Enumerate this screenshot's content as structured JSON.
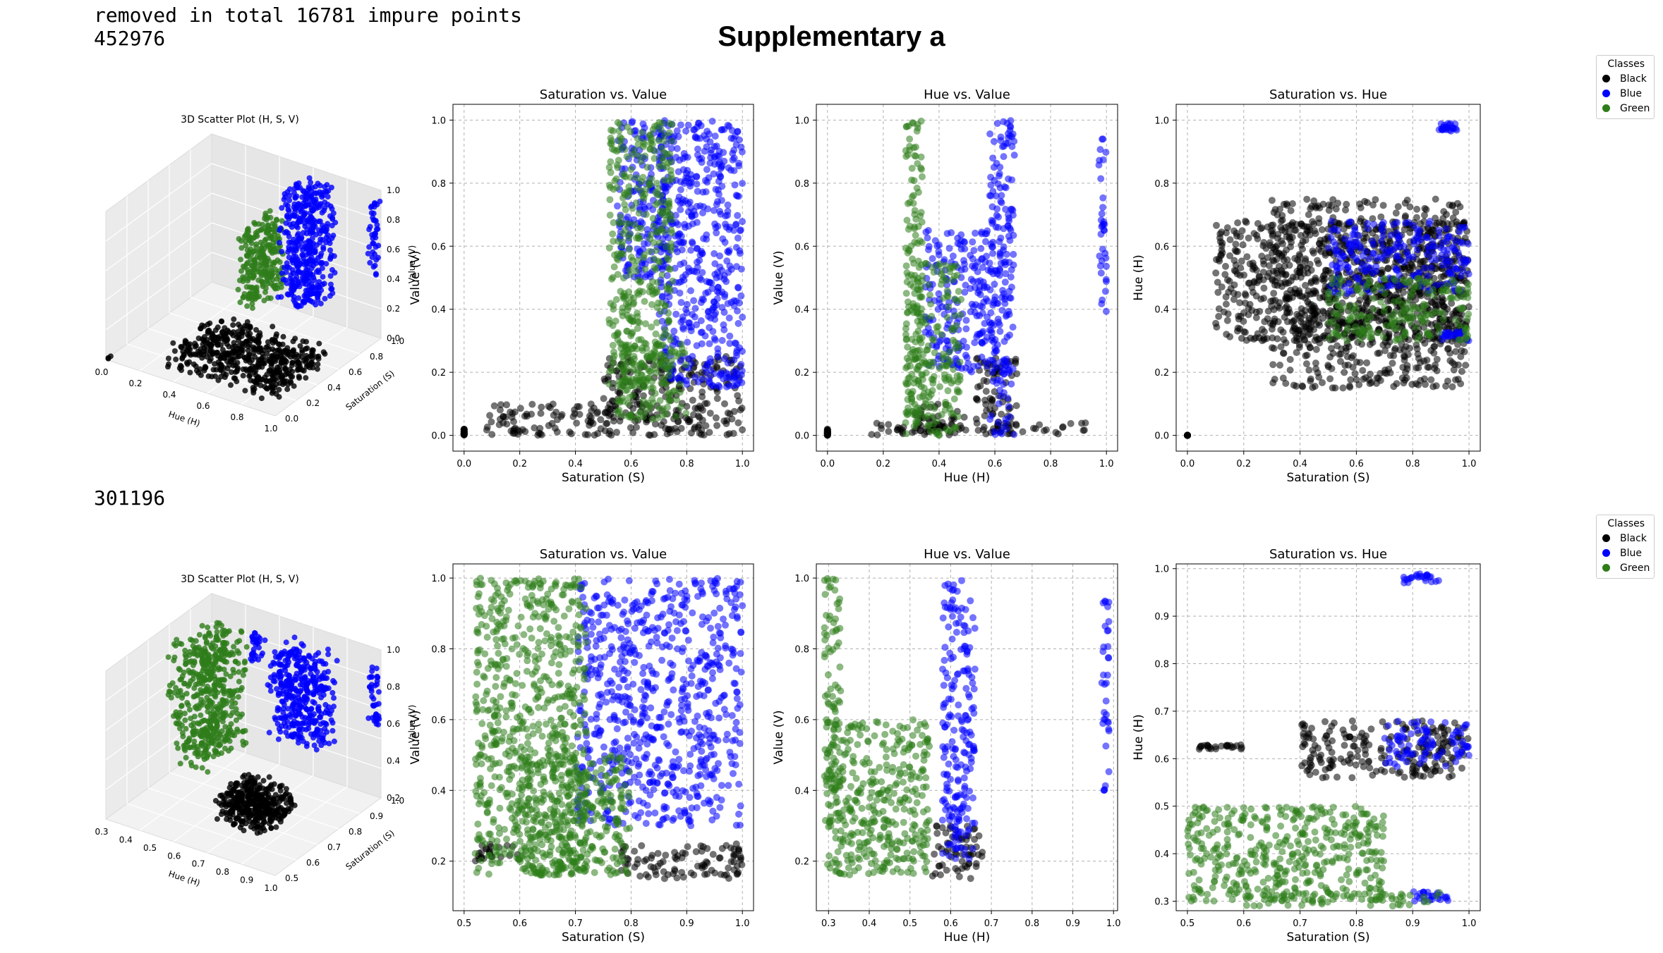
{
  "header": {
    "log_line1": "removed in total 16781 impure points",
    "log_line2": "452976",
    "log_line3": "301196",
    "suptitle": "Supplementary a"
  },
  "legend": {
    "title": "Classes",
    "items": [
      {
        "label": "Black",
        "color": "#000000"
      },
      {
        "label": "Blue",
        "color": "#0000ff"
      },
      {
        "label": "Green",
        "color": "#2e7d1a"
      }
    ]
  },
  "colors": {
    "black": "#000000",
    "blue": "#0000ff",
    "green": "#2e7d1a",
    "grid": "#b0b0b0"
  },
  "chart_data": [
    {
      "type": "scatter3d",
      "row": 1,
      "title": "3D Scatter Plot (H, S, V)",
      "xlabel": "Hue (H)",
      "ylabel": "Saturation (S)",
      "zlabel": "Value (V)",
      "xticks": [
        "0.0",
        "0.2",
        "0.4",
        "0.6",
        "0.8",
        "1.0"
      ],
      "yticks": [
        "0.0",
        "0.2",
        "0.4",
        "0.6",
        "0.8",
        "1.0"
      ],
      "zticks": [
        "0.0",
        "0.2",
        "0.4",
        "0.6",
        "0.8",
        "1.0"
      ]
    },
    {
      "type": "scatter",
      "row": 1,
      "title": "Saturation vs. Value",
      "xlabel": "Saturation (S)",
      "ylabel": "Value (V)",
      "xlim": [
        -0.04,
        1.04
      ],
      "ylim": [
        -0.05,
        1.05
      ],
      "xticks": [
        0.0,
        0.2,
        0.4,
        0.6,
        0.8,
        1.0
      ],
      "yticks": [
        0.0,
        0.2,
        0.4,
        0.6,
        0.8,
        1.0
      ],
      "grid": true,
      "series": [
        {
          "name": "Black",
          "color": "#000000",
          "clusters": [
            {
              "x": [
                0.0,
                0.0
              ],
              "y": [
                0.0,
                0.02
              ]
            },
            {
              "x": [
                0.08,
                0.55
              ],
              "y": [
                0.0,
                0.1
              ]
            },
            {
              "x": [
                0.5,
                1.0
              ],
              "y": [
                0.0,
                0.25
              ]
            }
          ]
        },
        {
          "name": "Blue",
          "color": "#0000ff",
          "clusters": [
            {
              "x": [
                0.7,
                1.0
              ],
              "y": [
                0.15,
                1.0
              ]
            },
            {
              "x": [
                0.55,
                0.72
              ],
              "y": [
                0.5,
                1.0
              ]
            }
          ]
        },
        {
          "name": "Green",
          "color": "#2e7d1a",
          "clusters": [
            {
              "x": [
                0.52,
                0.75
              ],
              "y": [
                0.15,
                1.0
              ]
            },
            {
              "x": [
                0.55,
                0.8
              ],
              "y": [
                0.05,
                0.3
              ]
            }
          ]
        }
      ]
    },
    {
      "type": "scatter",
      "row": 1,
      "title": "Hue vs. Value",
      "xlabel": "Hue (H)",
      "ylabel": "Value (V)",
      "xlim": [
        -0.04,
        1.04
      ],
      "ylim": [
        -0.05,
        1.05
      ],
      "xticks": [
        0.0,
        0.2,
        0.4,
        0.6,
        0.8,
        1.0
      ],
      "yticks": [
        0.0,
        0.2,
        0.4,
        0.6,
        0.8,
        1.0
      ],
      "grid": true,
      "series": [
        {
          "name": "Black",
          "color": "#000000",
          "clusters": [
            {
              "x": [
                0.0,
                0.0
              ],
              "y": [
                0.0,
                0.02
              ]
            },
            {
              "x": [
                0.15,
                0.95
              ],
              "y": [
                0.0,
                0.04
              ]
            },
            {
              "x": [
                0.53,
                0.68
              ],
              "y": [
                0.0,
                0.25
              ]
            },
            {
              "x": [
                0.3,
                0.5
              ],
              "y": [
                0.0,
                0.1
              ]
            }
          ]
        },
        {
          "name": "Blue",
          "color": "#0000ff",
          "clusters": [
            {
              "x": [
                0.58,
                0.67
              ],
              "y": [
                0.0,
                1.0
              ]
            },
            {
              "x": [
                0.35,
                0.6
              ],
              "y": [
                0.2,
                0.65
              ]
            },
            {
              "x": [
                0.97,
                1.0
              ],
              "y": [
                0.38,
                0.95
              ]
            }
          ]
        },
        {
          "name": "Green",
          "color": "#2e7d1a",
          "clusters": [
            {
              "x": [
                0.28,
                0.34
              ],
              "y": [
                0.05,
                1.0
              ]
            },
            {
              "x": [
                0.28,
                0.48
              ],
              "y": [
                0.0,
                0.55
              ]
            }
          ]
        }
      ]
    },
    {
      "type": "scatter",
      "row": 1,
      "title": "Saturation vs. Hue",
      "xlabel": "Saturation (S)",
      "ylabel": "Hue (H)",
      "xlim": [
        -0.04,
        1.04
      ],
      "ylim": [
        -0.05,
        1.05
      ],
      "xticks": [
        0.0,
        0.2,
        0.4,
        0.6,
        0.8,
        1.0
      ],
      "yticks": [
        0.0,
        0.2,
        0.4,
        0.6,
        0.8,
        1.0
      ],
      "grid": true,
      "series": [
        {
          "name": "Black",
          "color": "#000000",
          "clusters": [
            {
              "x": [
                0.0,
                0.0
              ],
              "y": [
                0.0,
                0.0
              ]
            },
            {
              "x": [
                0.1,
                1.0
              ],
              "y": [
                0.3,
                0.68
              ]
            },
            {
              "x": [
                0.3,
                1.0
              ],
              "y": [
                0.15,
                0.75
              ]
            }
          ]
        },
        {
          "name": "Blue",
          "color": "#0000ff",
          "clusters": [
            {
              "x": [
                0.5,
                1.0
              ],
              "y": [
                0.45,
                0.68
              ]
            },
            {
              "x": [
                0.88,
                0.96
              ],
              "y": [
                0.96,
                0.99
              ]
            },
            {
              "x": [
                0.9,
                1.0
              ],
              "y": [
                0.3,
                0.33
              ]
            }
          ]
        },
        {
          "name": "Green",
          "color": "#2e7d1a",
          "clusters": [
            {
              "x": [
                0.5,
                1.0
              ],
              "y": [
                0.3,
                0.5
              ]
            }
          ]
        }
      ]
    },
    {
      "type": "scatter3d",
      "row": 2,
      "title": "3D Scatter Plot (H, S, V)",
      "xlabel": "Hue (H)",
      "ylabel": "Saturation (S)",
      "zlabel": "Value (V)",
      "xticks": [
        "0.3",
        "0.4",
        "0.5",
        "0.6",
        "0.7",
        "0.8",
        "0.9",
        "1.0"
      ],
      "yticks": [
        "0.5",
        "0.6",
        "0.7",
        "0.8",
        "0.9",
        "1.0"
      ],
      "zticks": [
        "0.2",
        "0.4",
        "0.6",
        "0.8",
        "1.0"
      ]
    },
    {
      "type": "scatter",
      "row": 2,
      "title": "Saturation vs. Value",
      "xlabel": "Saturation (S)",
      "ylabel": "Value (V)",
      "xlim": [
        0.48,
        1.02
      ],
      "ylim": [
        0.06,
        1.04
      ],
      "xticks": [
        0.5,
        0.6,
        0.7,
        0.8,
        0.9,
        1.0
      ],
      "yticks": [
        0.2,
        0.4,
        0.6,
        0.8,
        1.0
      ],
      "grid": true,
      "series": [
        {
          "name": "Black",
          "color": "#000000",
          "clusters": [
            {
              "x": [
                0.78,
                1.0
              ],
              "y": [
                0.15,
                0.25
              ]
            },
            {
              "x": [
                0.52,
                0.6
              ],
              "y": [
                0.2,
                0.25
              ]
            }
          ]
        },
        {
          "name": "Blue",
          "color": "#0000ff",
          "clusters": [
            {
              "x": [
                0.7,
                1.0
              ],
              "y": [
                0.3,
                1.0
              ]
            }
          ]
        },
        {
          "name": "Green",
          "color": "#2e7d1a",
          "clusters": [
            {
              "x": [
                0.52,
                0.72
              ],
              "y": [
                0.16,
                1.0
              ]
            },
            {
              "x": [
                0.6,
                0.8
              ],
              "y": [
                0.16,
                0.5
              ]
            }
          ]
        }
      ]
    },
    {
      "type": "scatter",
      "row": 2,
      "title": "Hue vs. Value",
      "xlabel": "Hue (H)",
      "ylabel": "Value (V)",
      "xlim": [
        0.27,
        1.01
      ],
      "ylim": [
        0.06,
        1.04
      ],
      "xticks": [
        0.3,
        0.4,
        0.5,
        0.6,
        0.7,
        0.8,
        0.9,
        1.0
      ],
      "yticks": [
        0.2,
        0.4,
        0.6,
        0.8,
        1.0
      ],
      "grid": true,
      "series": [
        {
          "name": "Black",
          "color": "#000000",
          "clusters": [
            {
              "x": [
                0.55,
                0.68
              ],
              "y": [
                0.15,
                0.3
              ]
            }
          ]
        },
        {
          "name": "Blue",
          "color": "#0000ff",
          "clusters": [
            {
              "x": [
                0.58,
                0.66
              ],
              "y": [
                0.2,
                1.0
              ]
            },
            {
              "x": [
                0.97,
                0.99
              ],
              "y": [
                0.4,
                0.95
              ]
            }
          ]
        },
        {
          "name": "Green",
          "color": "#2e7d1a",
          "clusters": [
            {
              "x": [
                0.29,
                0.33
              ],
              "y": [
                0.16,
                1.0
              ]
            },
            {
              "x": [
                0.3,
                0.55
              ],
              "y": [
                0.16,
                0.6
              ]
            }
          ]
        }
      ]
    },
    {
      "type": "scatter",
      "row": 2,
      "title": "Saturation vs. Hue",
      "xlabel": "Saturation (S)",
      "ylabel": "Hue (H)",
      "xlim": [
        0.48,
        1.02
      ],
      "ylim": [
        0.28,
        1.01
      ],
      "xticks": [
        0.5,
        0.6,
        0.7,
        0.8,
        0.9,
        1.0
      ],
      "yticks": [
        0.3,
        0.4,
        0.5,
        0.6,
        0.7,
        0.8,
        0.9,
        1.0
      ],
      "grid": true,
      "series": [
        {
          "name": "Black",
          "color": "#000000",
          "clusters": [
            {
              "x": [
                0.7,
                1.0
              ],
              "y": [
                0.56,
                0.68
              ]
            },
            {
              "x": [
                0.52,
                0.6
              ],
              "y": [
                0.62,
                0.63
              ]
            }
          ]
        },
        {
          "name": "Blue",
          "color": "#0000ff",
          "clusters": [
            {
              "x": [
                0.85,
                1.0
              ],
              "y": [
                0.58,
                0.68
              ]
            },
            {
              "x": [
                0.88,
                0.95
              ],
              "y": [
                0.97,
                0.99
              ]
            },
            {
              "x": [
                0.9,
                0.97
              ],
              "y": [
                0.3,
                0.32
              ]
            }
          ]
        },
        {
          "name": "Green",
          "color": "#2e7d1a",
          "clusters": [
            {
              "x": [
                0.5,
                0.85
              ],
              "y": [
                0.3,
                0.5
              ]
            },
            {
              "x": [
                0.6,
                0.95
              ],
              "y": [
                0.29,
                0.32
              ]
            }
          ]
        }
      ]
    }
  ]
}
